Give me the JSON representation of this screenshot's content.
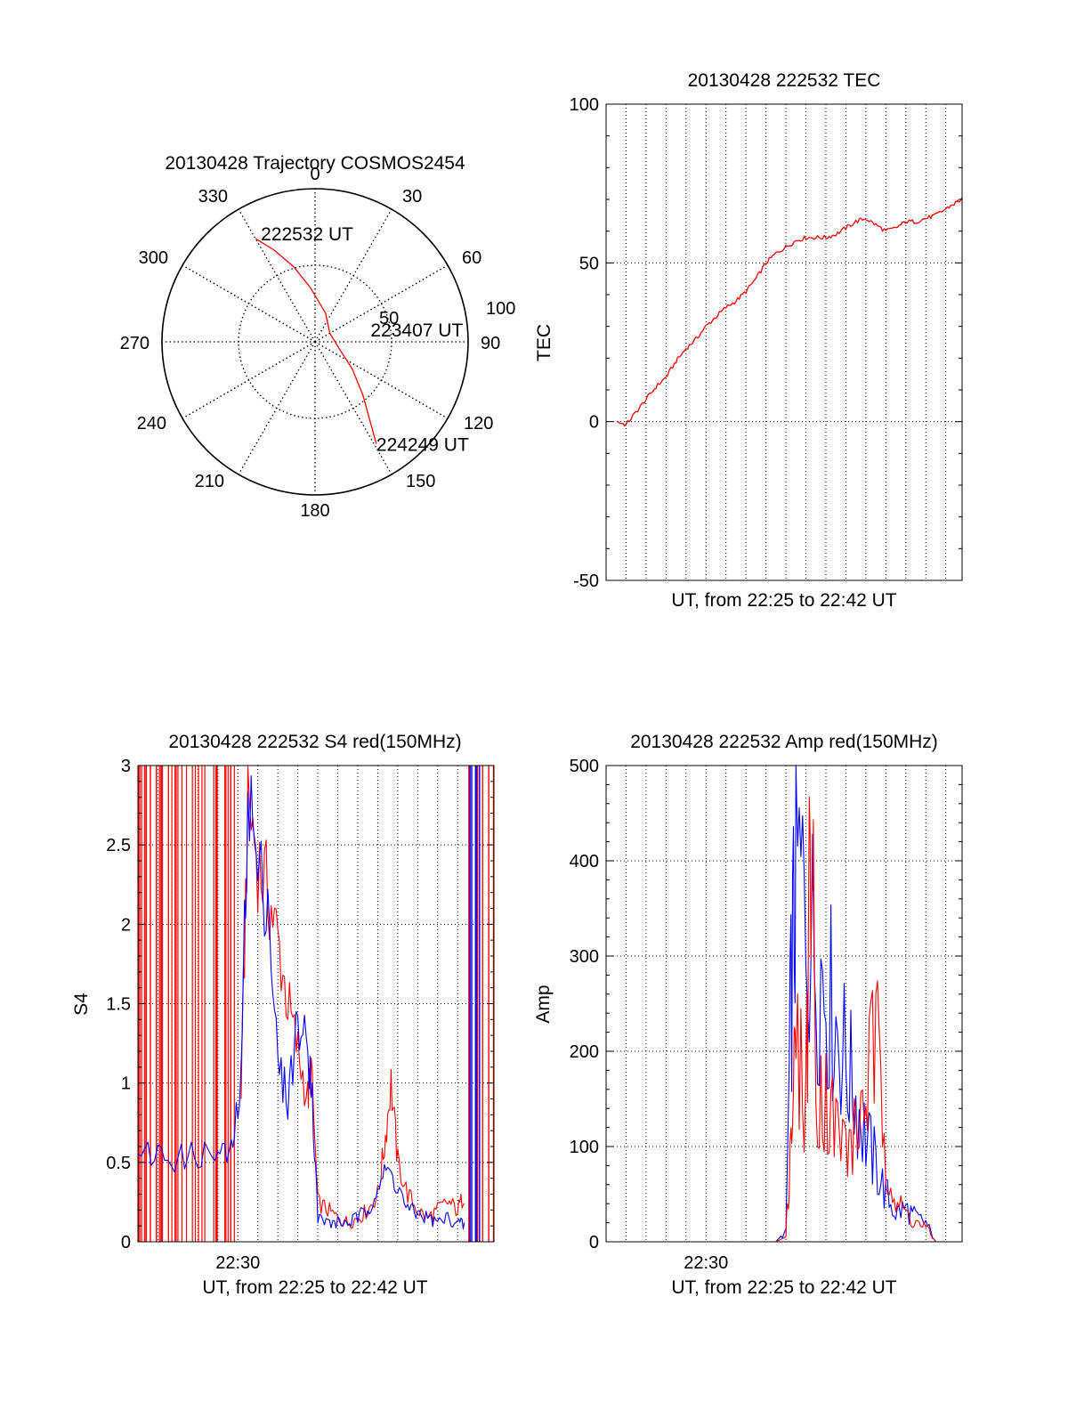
{
  "colors": {
    "red": "#ff0000",
    "blue": "#0000ff",
    "axis": "#000000",
    "grid": "#000000"
  },
  "chart_data": [
    {
      "type": "polar",
      "title": "20130428 Trajectory COSMOS2454",
      "angle_labels": [
        "0",
        "30",
        "60",
        "90",
        "120",
        "150",
        "180",
        "210",
        "240",
        "270",
        "300",
        "330"
      ],
      "radial_labels": [
        "50",
        "100"
      ],
      "rlim": [
        0,
        100
      ],
      "angle_zero": "top",
      "angle_direction": "clockwise",
      "grid": "dotted",
      "series": [
        {
          "color": "red",
          "points": [
            {
              "azimuth": 330,
              "elevation": 20
            },
            {
              "azimuth": 336,
              "elevation": 31
            },
            {
              "azimuth": 344,
              "elevation": 44
            },
            {
              "azimuth": 355,
              "elevation": 58
            },
            {
              "azimuth": 20,
              "elevation": 72
            },
            {
              "azimuth": 60,
              "elevation": 80
            },
            {
              "azimuth": 103,
              "elevation": 76
            },
            {
              "azimuth": 126,
              "elevation": 63
            },
            {
              "azimuth": 138,
              "elevation": 48
            },
            {
              "azimuth": 145,
              "elevation": 34
            },
            {
              "azimuth": 149,
              "elevation": 20
            }
          ]
        }
      ],
      "annotations": [
        {
          "text": "222532 UT",
          "azimuth": 330,
          "elevation": 20
        },
        {
          "text": "223407 UT",
          "azimuth": 82,
          "elevation": 75
        },
        {
          "text": "224249 UT",
          "azimuth": 149,
          "elevation": 20
        }
      ]
    },
    {
      "type": "line",
      "title": "20130428 222532 TEC",
      "xlabel": "UT, from 22:25 to 22:42 UT",
      "ylabel": "TEC",
      "xlim": [
        "22:25:00",
        "22:42:49"
      ],
      "ylim": [
        -50,
        100
      ],
      "yticks": [
        "-50",
        "0",
        "50",
        "100"
      ],
      "xticks": [],
      "grid": true,
      "series": [
        {
          "color": "red",
          "x": [
            "22:25:32",
            "22:26:00",
            "22:26:30",
            "22:27:00",
            "22:27:30",
            "22:28:00",
            "22:28:30",
            "22:29:00",
            "22:29:30",
            "22:30:00",
            "22:30:30",
            "22:31:00",
            "22:31:30",
            "22:32:00",
            "22:32:30",
            "22:33:00",
            "22:33:30",
            "22:34:00",
            "22:34:30",
            "22:35:00",
            "22:35:30",
            "22:36:00",
            "22:36:30",
            "22:37:00",
            "22:37:30",
            "22:38:00",
            "22:38:30",
            "22:39:00",
            "22:39:30",
            "22:40:00",
            "22:40:30",
            "22:41:00",
            "22:41:30",
            "22:42:00",
            "22:42:30",
            "22:42:49"
          ],
          "values": [
            0,
            -1,
            3,
            7,
            11,
            14,
            19,
            23,
            26,
            30,
            33,
            36,
            38,
            41,
            45,
            50,
            53,
            55,
            57,
            58,
            58,
            58,
            59,
            61,
            63,
            64,
            62,
            60,
            61,
            63,
            63,
            64,
            65,
            67,
            69,
            70
          ]
        }
      ]
    },
    {
      "type": "line",
      "title": "20130428 222532 S4 red(150MHz)",
      "xlabel": "UT, from 22:25 to 22:42 UT",
      "ylabel": "S4",
      "xlim": [
        "22:25:00",
        "22:42:49"
      ],
      "ylim": [
        0,
        3
      ],
      "yticks": [
        "0",
        "0.5",
        "1",
        "1.5",
        "2",
        "2.5",
        "3"
      ],
      "xticks": [
        "22:30"
      ],
      "grid": true,
      "series": [
        {
          "color": "red",
          "x": [
            "22:30:10",
            "22:30:30",
            "22:31:00",
            "22:31:30",
            "22:32:00",
            "22:32:30",
            "22:33:00",
            "22:33:30",
            "22:33:40",
            "22:34:00",
            "22:34:30",
            "22:35:00",
            "22:35:30",
            "22:36:00",
            "22:36:30",
            "22:37:00",
            "22:37:20",
            "22:37:40",
            "22:38:00",
            "22:38:30",
            "22:39:00",
            "22:39:30",
            "22:40:00",
            "22:40:30",
            "22:41:00",
            "22:41:20"
          ],
          "values": [
            0.9,
            2.8,
            2.4,
            2.2,
            1.9,
            1.5,
            1.2,
            0.9,
            1.1,
            0.25,
            0.2,
            0.15,
            0.12,
            0.15,
            0.2,
            0.3,
            0.6,
            1.0,
            0.5,
            0.3,
            0.2,
            0.15,
            0.2,
            0.25,
            0.2,
            0.3
          ]
        },
        {
          "color": "blue",
          "x": [
            "22:25:00",
            "22:26:00",
            "22:27:00",
            "22:28:00",
            "22:29:00",
            "22:29:40",
            "22:30:10",
            "22:30:30",
            "22:31:00",
            "22:31:30",
            "22:32:00",
            "22:32:30",
            "22:33:00",
            "22:33:30",
            "22:33:40",
            "22:34:00",
            "22:34:30",
            "22:35:00",
            "22:35:30",
            "22:36:00",
            "22:36:30",
            "22:37:00",
            "22:37:30",
            "22:38:00",
            "22:38:30",
            "22:39:00",
            "22:39:30",
            "22:40:00",
            "22:40:30",
            "22:41:00",
            "22:41:20"
          ],
          "values": [
            0.55,
            0.55,
            0.52,
            0.55,
            0.55,
            0.55,
            1.0,
            2.9,
            2.3,
            2.2,
            1.1,
            0.9,
            1.4,
            1.2,
            1.05,
            0.15,
            0.12,
            0.12,
            0.12,
            0.15,
            0.2,
            0.35,
            0.45,
            0.35,
            0.2,
            0.18,
            0.15,
            0.12,
            0.15,
            0.12,
            0.1
          ]
        }
      ]
    },
    {
      "type": "line",
      "title": "20130428 222532 Amp red(150MHz)",
      "xlabel": "UT, from 22:25 to 22:42 UT",
      "ylabel": "Amp",
      "xlim": [
        "22:25:00",
        "22:42:49"
      ],
      "ylim": [
        0,
        500
      ],
      "yticks": [
        "0",
        "100",
        "200",
        "300",
        "400",
        "500"
      ],
      "xticks": [
        "22:30"
      ],
      "grid": true,
      "series": [
        {
          "color": "blue",
          "x": [
            "22:25:00",
            "22:30:00",
            "22:33:30",
            "22:34:00",
            "22:34:15",
            "22:34:30",
            "22:35:00",
            "22:35:30",
            "22:36:00",
            "22:36:30",
            "22:37:00",
            "22:37:30",
            "22:38:00",
            "22:38:30",
            "22:39:00",
            "22:39:30",
            "22:40:00",
            "22:40:30",
            "22:41:00",
            "22:41:30"
          ],
          "values": [
            0,
            0,
            0,
            10,
            250,
            390,
            350,
            300,
            270,
            230,
            190,
            150,
            110,
            80,
            50,
            30,
            35,
            25,
            20,
            0
          ]
        },
        {
          "color": "red",
          "x": [
            "22:25:00",
            "22:30:00",
            "22:33:30",
            "22:34:00",
            "22:34:15",
            "22:34:30",
            "22:35:00",
            "22:35:15",
            "22:35:30",
            "22:36:00",
            "22:36:30",
            "22:37:00",
            "22:37:30",
            "22:38:00",
            "22:38:30",
            "22:39:00",
            "22:39:30",
            "22:40:00",
            "22:40:30",
            "22:41:00",
            "22:41:30"
          ],
          "values": [
            0,
            0,
            0,
            5,
            120,
            200,
            150,
            460,
            180,
            150,
            120,
            100,
            110,
            160,
            210,
            100,
            40,
            30,
            20,
            15,
            0
          ]
        }
      ]
    }
  ]
}
